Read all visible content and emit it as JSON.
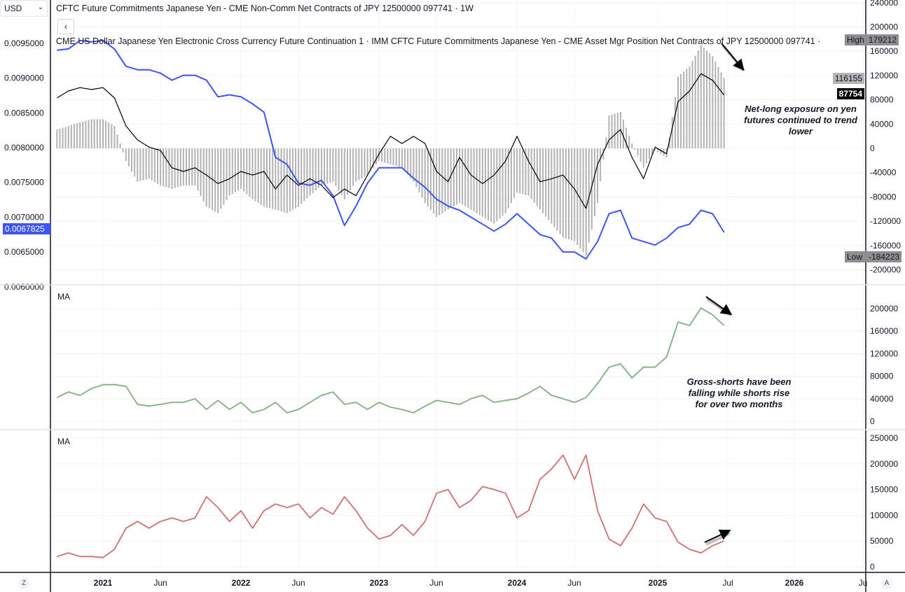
{
  "header": {
    "currency": "USD",
    "title_line": "CFTC Future Commitments Japanese Yen - CME Non-Comm Net Contracts of JPY 12500000 097741 · 1W",
    "back_label": "‹",
    "legend_line": "CME US Dollar Japanese Yen Electronic Cross Currency Future Continuation 1 · IMM   CFTC Future Commitments Japanese Yen - CME Asset Mgr Position Net Contracts of JPY 12500000 097741 ·"
  },
  "panes": {
    "pane2_label": "MA",
    "pane3_label": "MA"
  },
  "annotations": {
    "net_long": "Net-long exposure on yen futures continued to trend lower",
    "gross_shorts": "Gross-shorts have been falling while shorts rise for over two months"
  },
  "badges": {
    "high_label": "High",
    "high_value": "179212",
    "noncomm_last": "116155",
    "assetmgr_last": "87754",
    "low_label": "Low",
    "low_value": "-184223",
    "price_last": "0.0067825"
  },
  "time_axis": {
    "labels": [
      "2021",
      "Jun",
      "2022",
      "Jun",
      "2023",
      "Jun",
      "2024",
      "Jun",
      "2025",
      "Jul",
      "2026",
      "Ju"
    ],
    "left_button": "Z",
    "right_button": "A"
  },
  "colors": {
    "price": "#3d55f5",
    "asset_mgr": "#000000",
    "noncomm": "#b2b2b2",
    "gross_shorts": "#7fb07f",
    "shorts": "#d07070",
    "price_badge": "#3d55f5"
  },
  "chart_data": [
    {
      "type": "line",
      "pane": 1,
      "axes": {
        "left_ticks": [
          "0.0095000",
          "0.0090000",
          "0.0085000",
          "0.0080000",
          "0.0075000",
          "0.0070000",
          "0.0065000",
          "0.0060000"
        ],
        "left_range": [
          0.0058,
          0.0098
        ],
        "right_ticks": [
          "240000",
          "200000",
          "160000",
          "120000",
          "80000",
          "40000",
          "0",
          "-40000",
          "-80000",
          "-120000",
          "-160000",
          "-200000"
        ],
        "right_range": [
          -220000,
          240000
        ],
        "grid": true
      },
      "x": [
        "2020-09",
        "2020-10",
        "2020-11",
        "2020-12",
        "2021-01",
        "2021-02",
        "2021-03",
        "2021-04",
        "2021-05",
        "2021-06",
        "2021-07",
        "2021-08",
        "2021-09",
        "2021-10",
        "2021-11",
        "2021-12",
        "2022-01",
        "2022-02",
        "2022-03",
        "2022-04",
        "2022-05",
        "2022-06",
        "2022-07",
        "2022-08",
        "2022-09",
        "2022-10",
        "2022-11",
        "2022-12",
        "2023-01",
        "2023-02",
        "2023-03",
        "2023-04",
        "2023-05",
        "2023-06",
        "2023-07",
        "2023-08",
        "2023-09",
        "2023-10",
        "2023-11",
        "2023-12",
        "2024-01",
        "2024-02",
        "2024-03",
        "2024-04",
        "2024-05",
        "2024-06",
        "2024-07",
        "2024-08",
        "2024-09",
        "2024-10",
        "2024-11",
        "2024-12",
        "2025-01",
        "2025-02",
        "2025-03",
        "2025-04",
        "2025-05",
        "2025-06",
        "2025-07"
      ],
      "series": [
        {
          "name": "CME US Dollar Japanese Yen Electronic Cross Currency Future Continuation 1",
          "axis": "left",
          "style": "line",
          "values": [
            0.0094,
            0.00942,
            0.00954,
            0.00952,
            0.00954,
            0.00942,
            0.00917,
            0.00912,
            0.00912,
            0.00907,
            0.00897,
            0.00904,
            0.00904,
            0.00897,
            0.00873,
            0.00876,
            0.00873,
            0.00863,
            0.00851,
            0.00786,
            0.00776,
            0.00749,
            0.00746,
            0.00753,
            0.00731,
            0.00688,
            0.00716,
            0.00749,
            0.00771,
            0.00771,
            0.00771,
            0.00756,
            0.00743,
            0.00726,
            0.00716,
            0.0071,
            0.007,
            0.0069,
            0.0068,
            0.0069,
            0.00705,
            0.0069,
            0.00675,
            0.0067,
            0.0065,
            0.0065,
            0.0064,
            0.00665,
            0.00705,
            0.0071,
            0.0067,
            0.00665,
            0.0066,
            0.0067,
            0.00685,
            0.0069,
            0.0071,
            0.00705,
            0.0067825
          ]
        },
        {
          "name": "CFTC Future Commitments Japanese Yen - CME Asset Mgr Position Net Contracts of JPY 12500000 097741",
          "axis": "right",
          "style": "line",
          "values": [
            83000,
            94500,
            100000,
            97000,
            100000,
            83000,
            37000,
            14000,
            2000,
            -3500,
            -32000,
            -38000,
            -32000,
            -44000,
            -58000,
            -50000,
            -38000,
            -44000,
            -38000,
            -67000,
            -44000,
            -61000,
            -50000,
            -61000,
            -81000,
            -67000,
            -78000,
            -44000,
            -9000,
            20000,
            8000,
            20000,
            8000,
            -38000,
            -55000,
            -15000,
            -44000,
            -58000,
            -44000,
            -21000,
            20000,
            -21000,
            -55000,
            -50000,
            -44000,
            -67000,
            -99000,
            -26500,
            14000,
            31000,
            -15000,
            -50000,
            2000,
            -9000,
            77000,
            94500,
            123000,
            112000,
            87754
          ]
        },
        {
          "name": "CFTC Future Commitments Japanese Yen - CME Non-Comm Net Contracts of JPY 12500000 097741",
          "axis": "right",
          "style": "bar",
          "values": [
            31000,
            37000,
            43000,
            48000,
            48000,
            37000,
            -21000,
            -55000,
            -50000,
            -61000,
            -67000,
            -61000,
            -61000,
            -96000,
            -107000,
            -78000,
            -67000,
            -84000,
            -96000,
            -101000,
            -107000,
            -96000,
            -78000,
            -61000,
            -55000,
            -84000,
            -55000,
            -44000,
            -21000,
            -26500,
            -32000,
            -55000,
            -90000,
            -113000,
            -101000,
            -90000,
            -101000,
            -113000,
            -124000,
            -107000,
            -73000,
            -78000,
            -101000,
            -124000,
            -147000,
            -153000,
            -177000,
            -90000,
            54000,
            60000,
            8000,
            -32000,
            -3500,
            -15000,
            118000,
            135000,
            170000,
            152000,
            116155
          ]
        }
      ]
    },
    {
      "type": "line",
      "pane": 2,
      "axes": {
        "right_ticks": [
          "200000",
          "160000",
          "120000",
          "80000",
          "40000",
          "0"
        ],
        "right_range": [
          0,
          220000
        ],
        "grid": true
      },
      "series": [
        {
          "name": "MA",
          "color": "#7fb07f",
          "values": [
            42000,
            52000,
            46000,
            58000,
            65000,
            65000,
            62000,
            30000,
            27000,
            30000,
            33500,
            33500,
            40000,
            21000,
            37000,
            21000,
            33500,
            15000,
            21000,
            33500,
            15000,
            21000,
            33500,
            46000,
            52000,
            30000,
            33500,
            21000,
            33500,
            25000,
            21000,
            15000,
            27000,
            37000,
            33500,
            30000,
            40000,
            46000,
            33500,
            37000,
            40000,
            50000,
            62000,
            46000,
            40000,
            33500,
            42000,
            67000,
            96000,
            102000,
            77000,
            96000,
            96000,
            114000,
            176000,
            170000,
            201000,
            189000,
            170000
          ]
        }
      ]
    },
    {
      "type": "line",
      "pane": 3,
      "axes": {
        "right_ticks": [
          "250000",
          "200000",
          "150000",
          "100000",
          "50000",
          "0"
        ],
        "right_range": [
          -10000,
          260000
        ],
        "grid": true
      },
      "series": [
        {
          "name": "MA",
          "color": "#d07070",
          "values": [
            20000,
            27000,
            20000,
            20000,
            18000,
            34000,
            75000,
            88000,
            75000,
            88000,
            95000,
            88000,
            95000,
            136000,
            115000,
            88000,
            109000,
            75000,
            109000,
            122000,
            115000,
            122000,
            95000,
            115000,
            102000,
            136000,
            109000,
            75000,
            54000,
            61000,
            82000,
            61000,
            88000,
            143000,
            150000,
            115000,
            129000,
            156000,
            150000,
            143000,
            95000,
            109000,
            170000,
            190000,
            217000,
            170000,
            217000,
            109000,
            54000,
            41000,
            75000,
            122000,
            95000,
            88000,
            48000,
            34000,
            27000,
            41000,
            50000
          ]
        }
      ]
    }
  ]
}
